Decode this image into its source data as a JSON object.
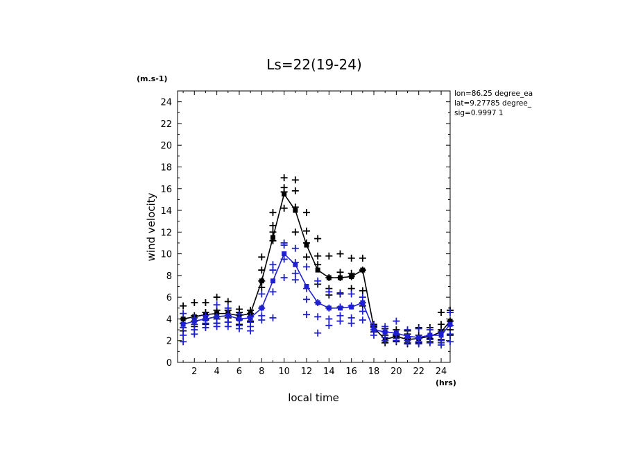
{
  "chart_data": {
    "type": "line",
    "title": "Ls=22(19-24)",
    "xlabel": "local time",
    "ylabel": "wind velocity",
    "x_unit": "(hrs)",
    "y_unit": "(m.s-1)",
    "xlim": [
      0.5,
      24.8
    ],
    "ylim": [
      0,
      25
    ],
    "x_ticks": [
      2,
      4,
      6,
      8,
      10,
      12,
      14,
      16,
      18,
      20,
      22,
      24
    ],
    "y_ticks": [
      0,
      2,
      4,
      6,
      8,
      10,
      12,
      14,
      16,
      18,
      20,
      22,
      24
    ],
    "grid": false,
    "annotations": [
      "lon=86.25 degree_ea",
      "lat=9.27785 degree_",
      "sig=0.9997 1"
    ],
    "series": [
      {
        "color": "#000000",
        "x": [
          1,
          2,
          3,
          4,
          5,
          6,
          7,
          8,
          9,
          10,
          11,
          12,
          13,
          14,
          15,
          16,
          17,
          18,
          19,
          20,
          21,
          22,
          23,
          24,
          24.8
        ],
        "values": [
          4.0,
          4.2,
          4.4,
          4.5,
          4.5,
          4.3,
          4.5,
          7.5,
          11.5,
          15.5,
          14.0,
          10.8,
          8.5,
          7.8,
          7.8,
          7.9,
          8.5,
          3.2,
          2.1,
          2.4,
          2.1,
          2.2,
          2.4,
          2.8,
          3.8
        ],
        "scatter": [
          [
            4.0,
            5.2,
            3.6,
            2.9
          ],
          [
            4.3,
            5.5,
            3.8,
            3.3
          ],
          [
            4.6,
            5.5,
            3.9,
            3.5
          ],
          [
            4.8,
            6.0,
            4.0,
            3.6
          ],
          [
            4.8,
            5.6,
            4.1,
            3.7
          ],
          [
            4.6,
            4.9,
            4.0,
            3.5
          ],
          [
            4.8,
            4.2,
            3.8,
            4.5
          ],
          [
            7.5,
            8.5,
            9.7,
            6.9
          ],
          [
            12.0,
            13.8,
            11.2,
            12.6
          ],
          [
            15.7,
            17.0,
            14.2,
            16.1
          ],
          [
            14.3,
            16.8,
            15.8,
            12.0
          ],
          [
            11.0,
            13.8,
            9.7,
            12.1
          ],
          [
            9.0,
            9.8,
            7.2,
            11.4
          ],
          [
            7.8,
            9.8,
            6.8,
            6.2
          ],
          [
            7.8,
            10.0,
            8.3,
            6.3
          ],
          [
            7.9,
            9.6,
            8.2,
            6.8
          ],
          [
            8.5,
            9.6,
            6.6,
            5.2
          ],
          [
            3.2,
            3.5,
            2.8,
            3.3
          ],
          [
            2.0,
            2.5,
            1.8,
            3.1
          ],
          [
            2.5,
            3.0,
            1.9,
            2.4
          ],
          [
            2.2,
            2.6,
            1.7,
            2.9
          ],
          [
            2.2,
            3.2,
            1.8,
            2.5
          ],
          [
            2.5,
            3.2,
            1.9,
            2.2
          ],
          [
            3.0,
            4.6,
            3.5,
            2.1
          ],
          [
            3.8,
            4.8,
            3.0,
            2.5
          ]
        ]
      },
      {
        "color": "#1f1fd2",
        "x": [
          1,
          2,
          3,
          4,
          5,
          6,
          7,
          8,
          9,
          10,
          11,
          12,
          13,
          14,
          15,
          16,
          17,
          18,
          19,
          20,
          21,
          22,
          23,
          24,
          24.8
        ],
        "values": [
          3.5,
          3.8,
          4.0,
          4.2,
          4.3,
          4.0,
          4.1,
          5.0,
          7.5,
          10.0,
          9.0,
          7.0,
          5.5,
          5.0,
          5.0,
          5.1,
          5.5,
          3.0,
          2.8,
          2.7,
          2.4,
          2.3,
          2.5,
          2.5,
          3.5
        ],
        "scatter": [
          [
            3.2,
            4.5,
            2.5,
            1.9
          ],
          [
            3.5,
            4.1,
            3.0,
            2.6
          ],
          [
            4.0,
            4.3,
            3.6,
            3.2
          ],
          [
            4.2,
            5.3,
            3.6,
            3.3
          ],
          [
            4.3,
            5.0,
            3.7,
            3.3
          ],
          [
            3.9,
            4.4,
            3.4,
            3.1
          ],
          [
            3.7,
            4.2,
            3.3,
            2.9
          ],
          [
            5.0,
            6.3,
            4.3,
            3.9
          ],
          [
            8.5,
            9.0,
            6.5,
            4.1
          ],
          [
            10.8,
            11.0,
            9.5,
            7.8
          ],
          [
            9.2,
            10.5,
            8.2,
            7.6
          ],
          [
            6.8,
            8.8,
            5.8,
            4.4
          ],
          [
            5.5,
            7.5,
            4.2,
            2.7
          ],
          [
            5.0,
            6.5,
            4.0,
            3.4
          ],
          [
            5.1,
            6.4,
            4.3,
            3.8
          ],
          [
            5.2,
            6.3,
            4.1,
            3.6
          ],
          [
            5.5,
            6.0,
            4.7,
            3.9
          ],
          [
            3.0,
            3.4,
            2.5,
            3.2
          ],
          [
            2.8,
            3.3,
            2.3,
            2.0
          ],
          [
            2.6,
            3.8,
            2.0,
            2.2
          ],
          [
            2.3,
            3.0,
            1.8,
            2.0
          ],
          [
            2.2,
            3.1,
            1.7,
            1.9
          ],
          [
            2.5,
            3.0,
            1.8,
            2.1
          ],
          [
            2.0,
            2.8,
            1.6,
            1.8
          ],
          [
            3.4,
            4.6,
            2.6,
            1.9
          ]
        ]
      }
    ]
  }
}
